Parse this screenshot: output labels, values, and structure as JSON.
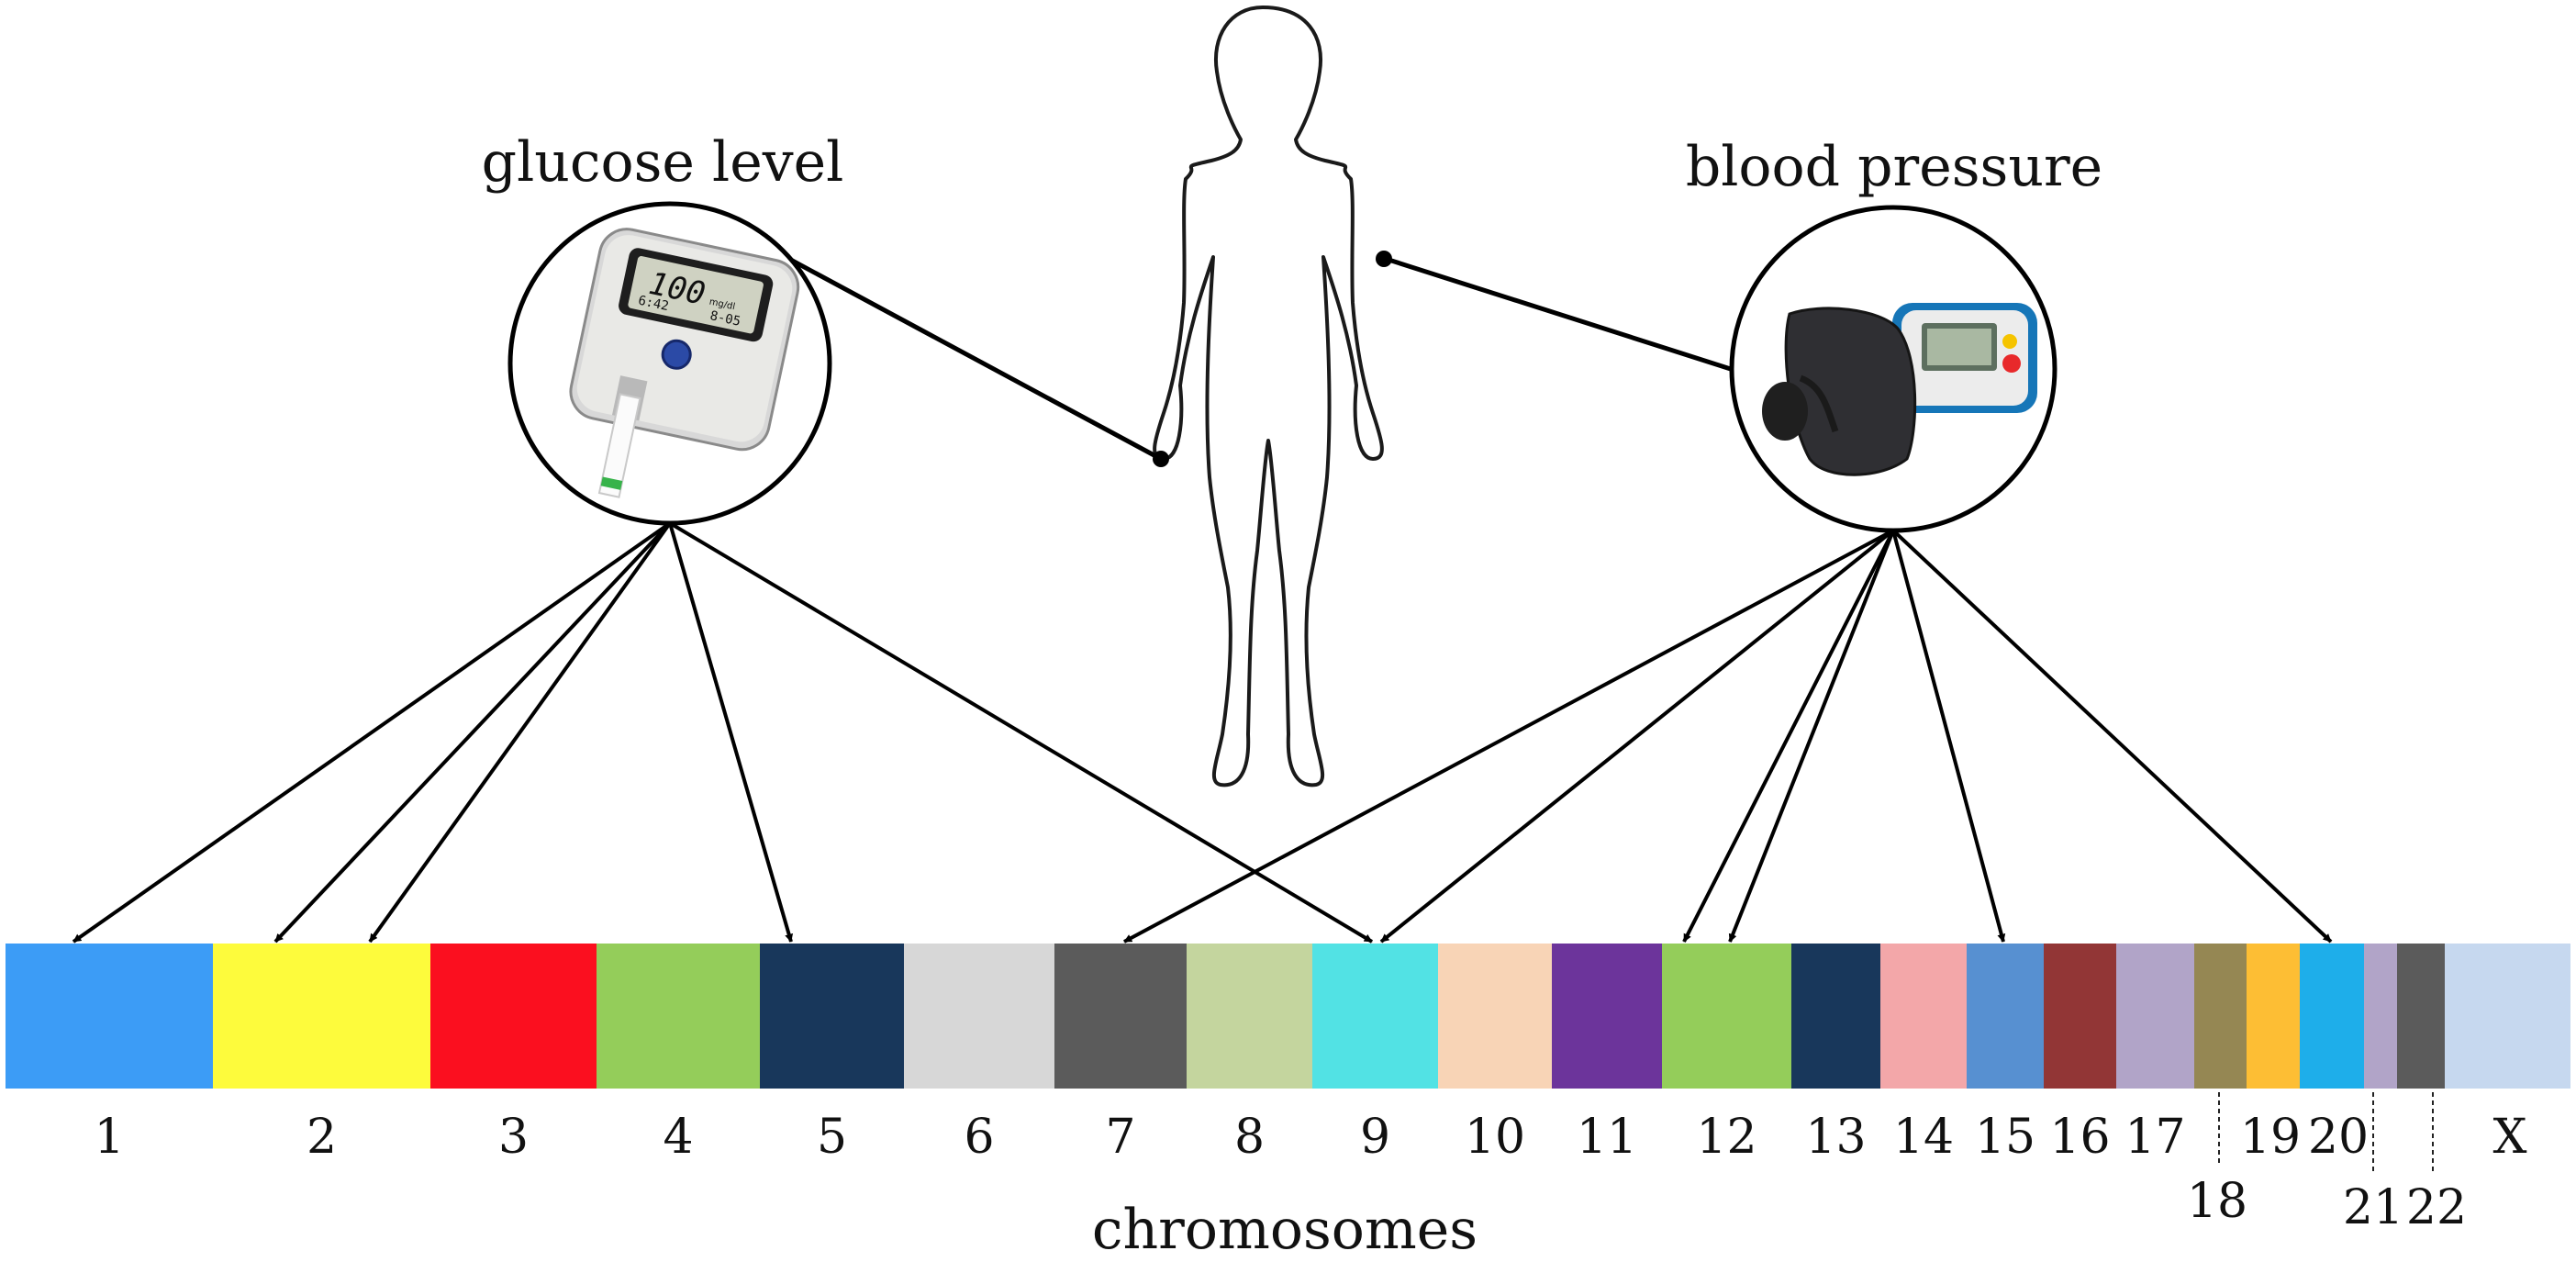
{
  "labels": {
    "glucose": "glucose level",
    "blood_pressure": "blood pressure",
    "axis": "chromosomes"
  },
  "glucose_meter": {
    "display_value": "100",
    "display_unit": "mg/dl",
    "display_time": "6:42",
    "display_date": "8-05"
  },
  "chromosomes": [
    {
      "label": "1",
      "color": "#3c9cf6"
    },
    {
      "label": "2",
      "color": "#fdfb3c"
    },
    {
      "label": "3",
      "color": "#fb0f1f"
    },
    {
      "label": "4",
      "color": "#94cd5a"
    },
    {
      "label": "5",
      "color": "#18375b"
    },
    {
      "label": "6",
      "color": "#d7d7d7"
    },
    {
      "label": "7",
      "color": "#5b5b5b"
    },
    {
      "label": "8",
      "color": "#c4d59e"
    },
    {
      "label": "9",
      "color": "#52e2e4"
    },
    {
      "label": "10",
      "color": "#f8d4b6"
    },
    {
      "label": "11",
      "color": "#6c349b"
    },
    {
      "label": "12",
      "color": "#94cd5a"
    },
    {
      "label": "13",
      "color": "#18375b"
    },
    {
      "label": "14",
      "color": "#f3a7a9"
    },
    {
      "label": "15",
      "color": "#5790d1"
    },
    {
      "label": "16",
      "color": "#923636"
    },
    {
      "label": "17",
      "color": "#b1a4c8"
    },
    {
      "label": "18",
      "color": "#958753"
    },
    {
      "label": "19",
      "color": "#fdbe34"
    },
    {
      "label": "20",
      "color": "#1eaeea"
    },
    {
      "label": "21",
      "color": "#b1a4c8"
    },
    {
      "label": "22",
      "color": "#5b5b5b"
    },
    {
      "label": "X",
      "color": "#c6d8ef"
    }
  ],
  "links": {
    "glucose_to": [
      "1",
      "2",
      "2",
      "5",
      "9"
    ],
    "blood_pressure_to": [
      "7",
      "9",
      "12",
      "12",
      "15",
      "20"
    ]
  }
}
